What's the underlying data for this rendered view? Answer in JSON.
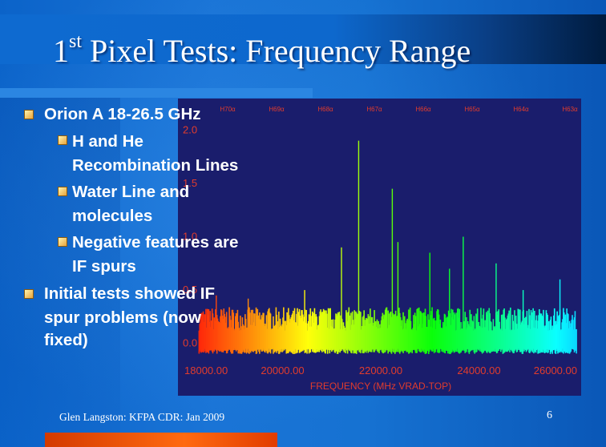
{
  "title": {
    "main": "Pixel Tests:  Frequency Range",
    "ordinal_num": "1",
    "ordinal_sup": "st"
  },
  "bullets": [
    {
      "level": 1,
      "lines": [
        "Orion  A  18-26.5 GHz"
      ]
    },
    {
      "level": 2,
      "lines": [
        "H and He",
        "Recombination Lines"
      ]
    },
    {
      "level": 2,
      "lines": [
        "Water Line and",
        "molecules"
      ]
    },
    {
      "level": 2,
      "lines": [
        "Negative features are",
        "IF spurs"
      ]
    },
    {
      "level": 1,
      "lines": [
        "Initial tests showed IF",
        "spur problems (now",
        "fixed)"
      ]
    }
  ],
  "footer": {
    "text": "Glen Langston:  KFPA CDR: Jan 2009",
    "page": "6"
  },
  "chart_data": {
    "type": "line",
    "xlabel": "FREQUENCY (MHz VRAD-TOP)",
    "ylabel": "",
    "x_ticks": [
      "18000.00",
      "20000.00",
      "22000.00",
      "24000.00",
      "26000.00"
    ],
    "y_ticks": [
      "0.0",
      "0.5",
      "1.0",
      "1.5",
      "2.0"
    ],
    "xlim": [
      18000,
      26000
    ],
    "ylim": [
      -0.1,
      2.1
    ],
    "line_labels": [
      "H70α",
      "H69α",
      "H68α",
      "H67α",
      "H66α",
      "H65α",
      "H64α",
      "H63α"
    ],
    "peaks": [
      {
        "x": 18650,
        "y": 0.45
      },
      {
        "x": 19300,
        "y": 0.42
      },
      {
        "x": 20450,
        "y": 0.5
      },
      {
        "x": 21200,
        "y": 0.9
      },
      {
        "x": 21550,
        "y": 1.9
      },
      {
        "x": 22235,
        "y": 1.45
      },
      {
        "x": 22350,
        "y": 0.95
      },
      {
        "x": 23000,
        "y": 0.85
      },
      {
        "x": 23400,
        "y": 0.7
      },
      {
        "x": 23680,
        "y": 1.0
      },
      {
        "x": 24350,
        "y": 0.75
      },
      {
        "x": 24900,
        "y": 0.5
      },
      {
        "x": 25650,
        "y": 0.6
      }
    ],
    "background_color": "#1a1d6c",
    "axis_text_color": "#e23c2c"
  }
}
